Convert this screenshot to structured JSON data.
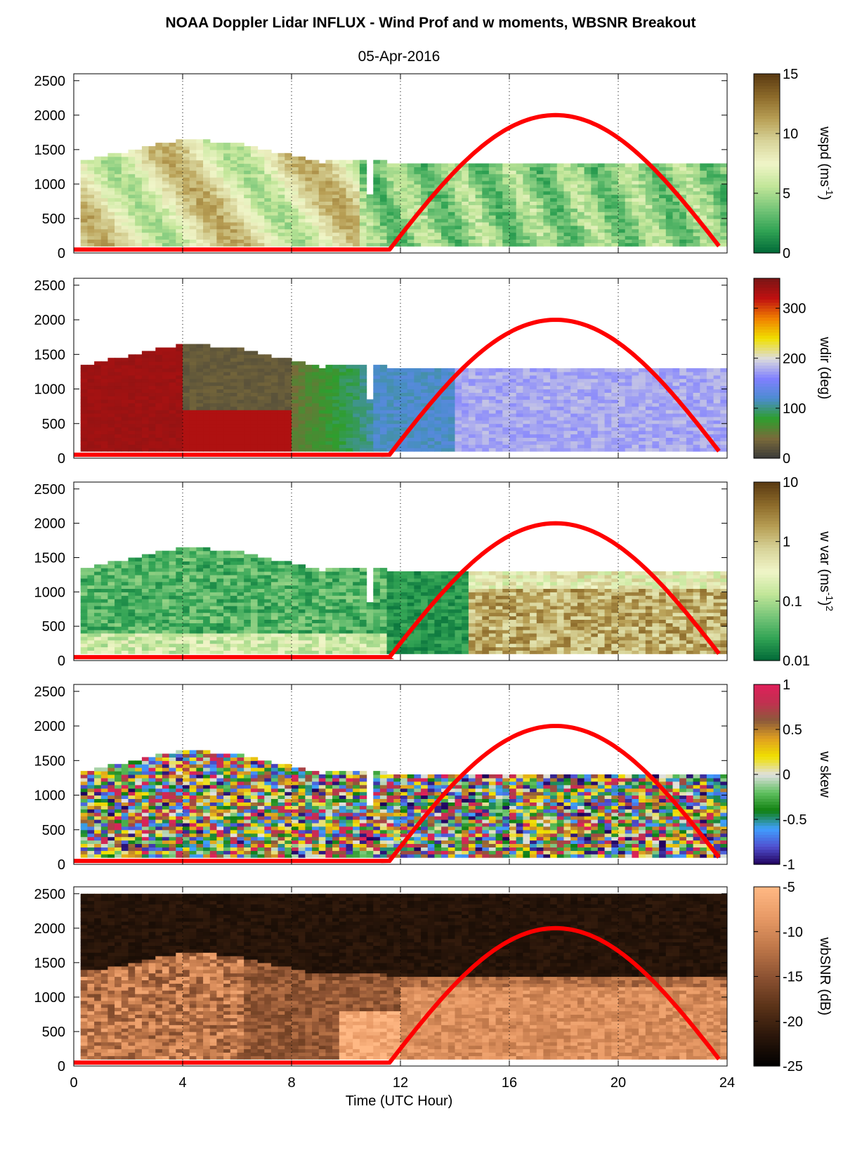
{
  "title": "NOAA Doppler Lidar INFLUX - Wind Prof and w moments, WBSNR Breakout",
  "subtitle": "05-Apr-2016",
  "xlabel": "Time (UTC Hour)",
  "colors": {
    "sun_curve": "#ff0000",
    "grid": "#000000"
  },
  "chart_data": [
    {
      "type": "heatmap",
      "variable": "wspd",
      "colorbar_label": "wspd (ms",
      "colorbar_label_sup": "-1",
      "colorbar_label_end": ")",
      "colorbar_ticks": [
        "0",
        "5",
        "10",
        "15"
      ],
      "colorbar_range": [
        0,
        15
      ],
      "ylim": [
        0,
        2600
      ],
      "y_ticks": [
        "0",
        "500",
        "1000",
        "1500",
        "2000",
        "2500"
      ],
      "x_ticks": [
        "0",
        "4",
        "8",
        "12",
        "16",
        "20",
        "24"
      ],
      "xlim": [
        0,
        24
      ],
      "colormap": [
        "#006837",
        "#31a354",
        "#78c679",
        "#c2e699",
        "#f0f5c8",
        "#d8d49a",
        "#b89f55",
        "#8c6a2a",
        "#5a3a12"
      ],
      "cloud_top_m": 1350,
      "solar_curve": {
        "peak_hour": 17.7,
        "peak_height_m": 2000,
        "rise_hour": 11.5,
        "set_hour": 23.8
      }
    },
    {
      "type": "heatmap",
      "variable": "wdir",
      "colorbar_label": "wdir (deg)",
      "colorbar_ticks": [
        "0",
        "100",
        "200",
        "300"
      ],
      "colorbar_range": [
        0,
        360
      ],
      "ylim": [
        0,
        2600
      ],
      "y_ticks": [
        "0",
        "500",
        "1000",
        "1500",
        "2000",
        "2500"
      ],
      "x_ticks": [
        "0",
        "4",
        "8",
        "12",
        "16",
        "20",
        "24"
      ],
      "xlim": [
        0,
        24
      ],
      "colormap": [
        "#3a3a3a",
        "#7a6a3a",
        "#2e9e2e",
        "#4c8cd0",
        "#8080ff",
        "#dcdcdc",
        "#f0e000",
        "#f08000",
        "#c01010",
        "#7a1515"
      ],
      "solar_curve": {
        "peak_hour": 17.7,
        "peak_height_m": 2000,
        "rise_hour": 11.5,
        "set_hour": 23.8
      }
    },
    {
      "type": "heatmap",
      "variable": "w var",
      "colorbar_label": "w var (ms",
      "colorbar_label_sup": "-1",
      "colorbar_label_end": ")",
      "colorbar_label_sup2": "2",
      "colorbar_ticks": [
        "0.01",
        "0.1",
        "1",
        "10"
      ],
      "colorbar_scale": "log",
      "colorbar_range": [
        0.01,
        10
      ],
      "ylim": [
        0,
        2600
      ],
      "y_ticks": [
        "0",
        "500",
        "1000",
        "1500",
        "2000",
        "2500"
      ],
      "x_ticks": [
        "0",
        "4",
        "8",
        "12",
        "16",
        "20",
        "24"
      ],
      "xlim": [
        0,
        24
      ],
      "colormap": [
        "#006837",
        "#31a354",
        "#78c679",
        "#c2e699",
        "#f0f5c8",
        "#d8d49a",
        "#b89f55",
        "#8c6a2a",
        "#5a3a12"
      ],
      "solar_curve": {
        "peak_hour": 17.7,
        "peak_height_m": 2000,
        "rise_hour": 11.5,
        "set_hour": 23.8
      }
    },
    {
      "type": "heatmap",
      "variable": "w skew",
      "colorbar_label": "w skew",
      "colorbar_ticks": [
        "-1",
        "-0.5",
        "0",
        "0.5",
        "1"
      ],
      "colorbar_range": [
        -1,
        1
      ],
      "ylim": [
        0,
        2600
      ],
      "y_ticks": [
        "0",
        "500",
        "1000",
        "1500",
        "2000",
        "2500"
      ],
      "x_ticks": [
        "0",
        "4",
        "8",
        "12",
        "16",
        "20",
        "24"
      ],
      "xlim": [
        0,
        24
      ],
      "colormap": [
        "#20005a",
        "#5050d0",
        "#40a0ff",
        "#108010",
        "#60c060",
        "#e0e0e0",
        "#f0e000",
        "#e0a020",
        "#8c5a3a",
        "#c03050",
        "#e0205a"
      ],
      "solar_curve": {
        "peak_hour": 17.7,
        "peak_height_m": 2000,
        "rise_hour": 11.5,
        "set_hour": 23.8
      }
    },
    {
      "type": "heatmap",
      "variable": "wbSNR",
      "colorbar_label": "wbSNR (dB)",
      "colorbar_ticks": [
        "-25",
        "-20",
        "-15",
        "-10",
        "-5"
      ],
      "colorbar_range": [
        -25,
        -5
      ],
      "ylim": [
        0,
        2600
      ],
      "y_ticks": [
        "0",
        "500",
        "1000",
        "1500",
        "2000",
        "2500"
      ],
      "x_ticks": [
        "0",
        "4",
        "8",
        "12",
        "16",
        "20",
        "24"
      ],
      "xlim": [
        0,
        24
      ],
      "colormap": [
        "#000000",
        "#2a160a",
        "#5a3218",
        "#8c5232",
        "#c0784a",
        "#e89a66",
        "#ffb884"
      ],
      "solar_curve": {
        "peak_hour": 17.7,
        "peak_height_m": 2000,
        "rise_hour": 11.5,
        "set_hour": 23.8
      }
    }
  ]
}
